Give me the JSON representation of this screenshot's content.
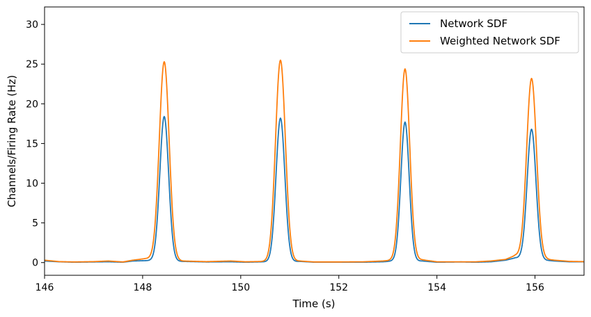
{
  "chart_data": {
    "type": "line",
    "title": "",
    "xlabel": "Time (s)",
    "ylabel": "Channels/Firing Rate (Hz)",
    "xlim": [
      146,
      157
    ],
    "ylim": [
      -1.6,
      32.2
    ],
    "xticks": [
      146,
      148,
      150,
      152,
      154,
      156
    ],
    "yticks": [
      0,
      5,
      10,
      15,
      20,
      25,
      30
    ],
    "grid": false,
    "legend_position": "top-right",
    "series": [
      {
        "name": "Network SDF",
        "color": "#1f77b4",
        "baseline": [
          [
            146.0,
            0.2
          ],
          [
            146.3,
            0.1
          ],
          [
            146.6,
            0.05
          ],
          [
            147.0,
            0.08
          ],
          [
            147.3,
            0.1
          ],
          [
            147.6,
            0.05
          ],
          [
            147.8,
            0.2
          ],
          [
            148.1,
            0.25
          ],
          [
            148.3,
            0.3
          ],
          [
            148.8,
            0.15
          ],
          [
            149.3,
            0.08
          ],
          [
            149.8,
            0.1
          ],
          [
            150.1,
            0.05
          ],
          [
            150.5,
            0.1
          ],
          [
            151.2,
            0.15
          ],
          [
            151.5,
            0.05
          ],
          [
            152.0,
            0.05
          ],
          [
            152.5,
            0.05
          ],
          [
            152.9,
            0.1
          ],
          [
            153.1,
            0.2
          ],
          [
            153.7,
            0.2
          ],
          [
            154.0,
            0.05
          ],
          [
            154.5,
            0.08
          ],
          [
            154.8,
            0.05
          ],
          [
            155.1,
            0.1
          ],
          [
            155.4,
            0.3
          ],
          [
            155.6,
            0.6
          ],
          [
            156.4,
            0.2
          ],
          [
            156.7,
            0.1
          ],
          [
            157.0,
            0.1
          ]
        ],
        "peaks": [
          {
            "x": 148.44,
            "y": 18.4,
            "width": 0.09
          },
          {
            "x": 150.81,
            "y": 18.2,
            "width": 0.09
          },
          {
            "x": 153.35,
            "y": 17.7,
            "width": 0.085
          },
          {
            "x": 155.93,
            "y": 16.8,
            "width": 0.09
          }
        ]
      },
      {
        "name": "Weighted Network SDF",
        "color": "#ff7f0e",
        "baseline": [
          [
            146.0,
            0.3
          ],
          [
            146.3,
            0.12
          ],
          [
            146.6,
            0.08
          ],
          [
            147.0,
            0.12
          ],
          [
            147.3,
            0.2
          ],
          [
            147.6,
            0.08
          ],
          [
            147.8,
            0.3
          ],
          [
            148.05,
            0.5
          ],
          [
            148.3,
            0.55
          ],
          [
            148.8,
            0.2
          ],
          [
            149.3,
            0.12
          ],
          [
            149.8,
            0.2
          ],
          [
            150.1,
            0.1
          ],
          [
            150.5,
            0.15
          ],
          [
            151.2,
            0.2
          ],
          [
            151.5,
            0.08
          ],
          [
            152.0,
            0.08
          ],
          [
            152.5,
            0.1
          ],
          [
            152.9,
            0.2
          ],
          [
            153.1,
            0.3
          ],
          [
            153.7,
            0.35
          ],
          [
            154.0,
            0.1
          ],
          [
            154.5,
            0.1
          ],
          [
            154.8,
            0.1
          ],
          [
            155.1,
            0.2
          ],
          [
            155.4,
            0.4
          ],
          [
            155.6,
            0.9
          ],
          [
            156.4,
            0.3
          ],
          [
            156.7,
            0.15
          ],
          [
            157.0,
            0.12
          ]
        ],
        "peaks": [
          {
            "x": 148.44,
            "y": 25.3,
            "width": 0.1
          },
          {
            "x": 150.81,
            "y": 25.5,
            "width": 0.1
          },
          {
            "x": 153.35,
            "y": 24.4,
            "width": 0.095
          },
          {
            "x": 155.93,
            "y": 23.2,
            "width": 0.1
          }
        ]
      }
    ]
  }
}
